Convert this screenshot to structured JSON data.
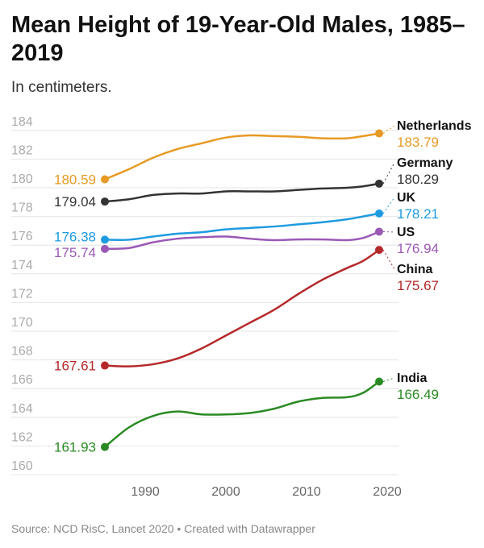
{
  "chart_data": {
    "type": "line",
    "title": "Mean Height of 19-Year-Old Males, 1985–2019",
    "subtitle": "In centimeters.",
    "xlabel": "",
    "ylabel": "",
    "xlim": [
      1981,
      2021
    ],
    "ylim": [
      160,
      184
    ],
    "x_ticks": [
      "1990",
      "2000",
      "2010",
      "2020"
    ],
    "y_ticks": [
      "160",
      "162",
      "164",
      "166",
      "168",
      "170",
      "172",
      "174",
      "176",
      "178",
      "180",
      "182",
      "184"
    ],
    "grid": true,
    "legend": "direct labels at line ends",
    "x": [
      1985,
      1988,
      1991,
      1994,
      1997,
      2000,
      2003,
      2006,
      2009,
      2012,
      2015,
      2017,
      2019
    ],
    "series": [
      {
        "name": "Netherlands",
        "color": "#e69a24",
        "start_label": "180.59",
        "end_label": "183.79",
        "values": [
          180.59,
          181.3,
          182.1,
          182.7,
          183.1,
          183.5,
          183.65,
          183.6,
          183.55,
          183.45,
          183.45,
          183.6,
          183.79
        ]
      },
      {
        "name": "Germany",
        "color": "#333333",
        "start_label": "179.04",
        "end_label": "180.29",
        "values": [
          179.04,
          179.2,
          179.5,
          179.6,
          179.6,
          179.75,
          179.75,
          179.75,
          179.85,
          179.95,
          180.0,
          180.1,
          180.29
        ]
      },
      {
        "name": "UK",
        "color": "#1e9be0",
        "start_label": "176.38",
        "end_label": "178.21",
        "values": [
          176.38,
          176.38,
          176.6,
          176.8,
          176.9,
          177.1,
          177.2,
          177.3,
          177.45,
          177.6,
          177.8,
          178.0,
          178.21
        ]
      },
      {
        "name": "US",
        "color": "#9b59b6",
        "start_label": "175.74",
        "end_label": "176.94",
        "values": [
          175.74,
          175.8,
          176.2,
          176.45,
          176.55,
          176.6,
          176.45,
          176.35,
          176.4,
          176.4,
          176.35,
          176.5,
          176.94
        ]
      },
      {
        "name": "China",
        "color": "#b5282a",
        "start_label": "167.61",
        "end_label": "175.67",
        "values": [
          167.61,
          167.55,
          167.7,
          168.1,
          168.8,
          169.7,
          170.6,
          171.5,
          172.6,
          173.6,
          174.4,
          174.9,
          175.67
        ]
      },
      {
        "name": "India",
        "color": "#2a8a23",
        "start_label": "161.93",
        "end_label": "166.49",
        "values": [
          161.93,
          163.3,
          164.1,
          164.4,
          164.2,
          164.2,
          164.3,
          164.6,
          165.1,
          165.35,
          165.4,
          165.7,
          166.49
        ]
      }
    ]
  },
  "source": "Source: NCD RisC, Lancet 2020 • Created with Datawrapper"
}
